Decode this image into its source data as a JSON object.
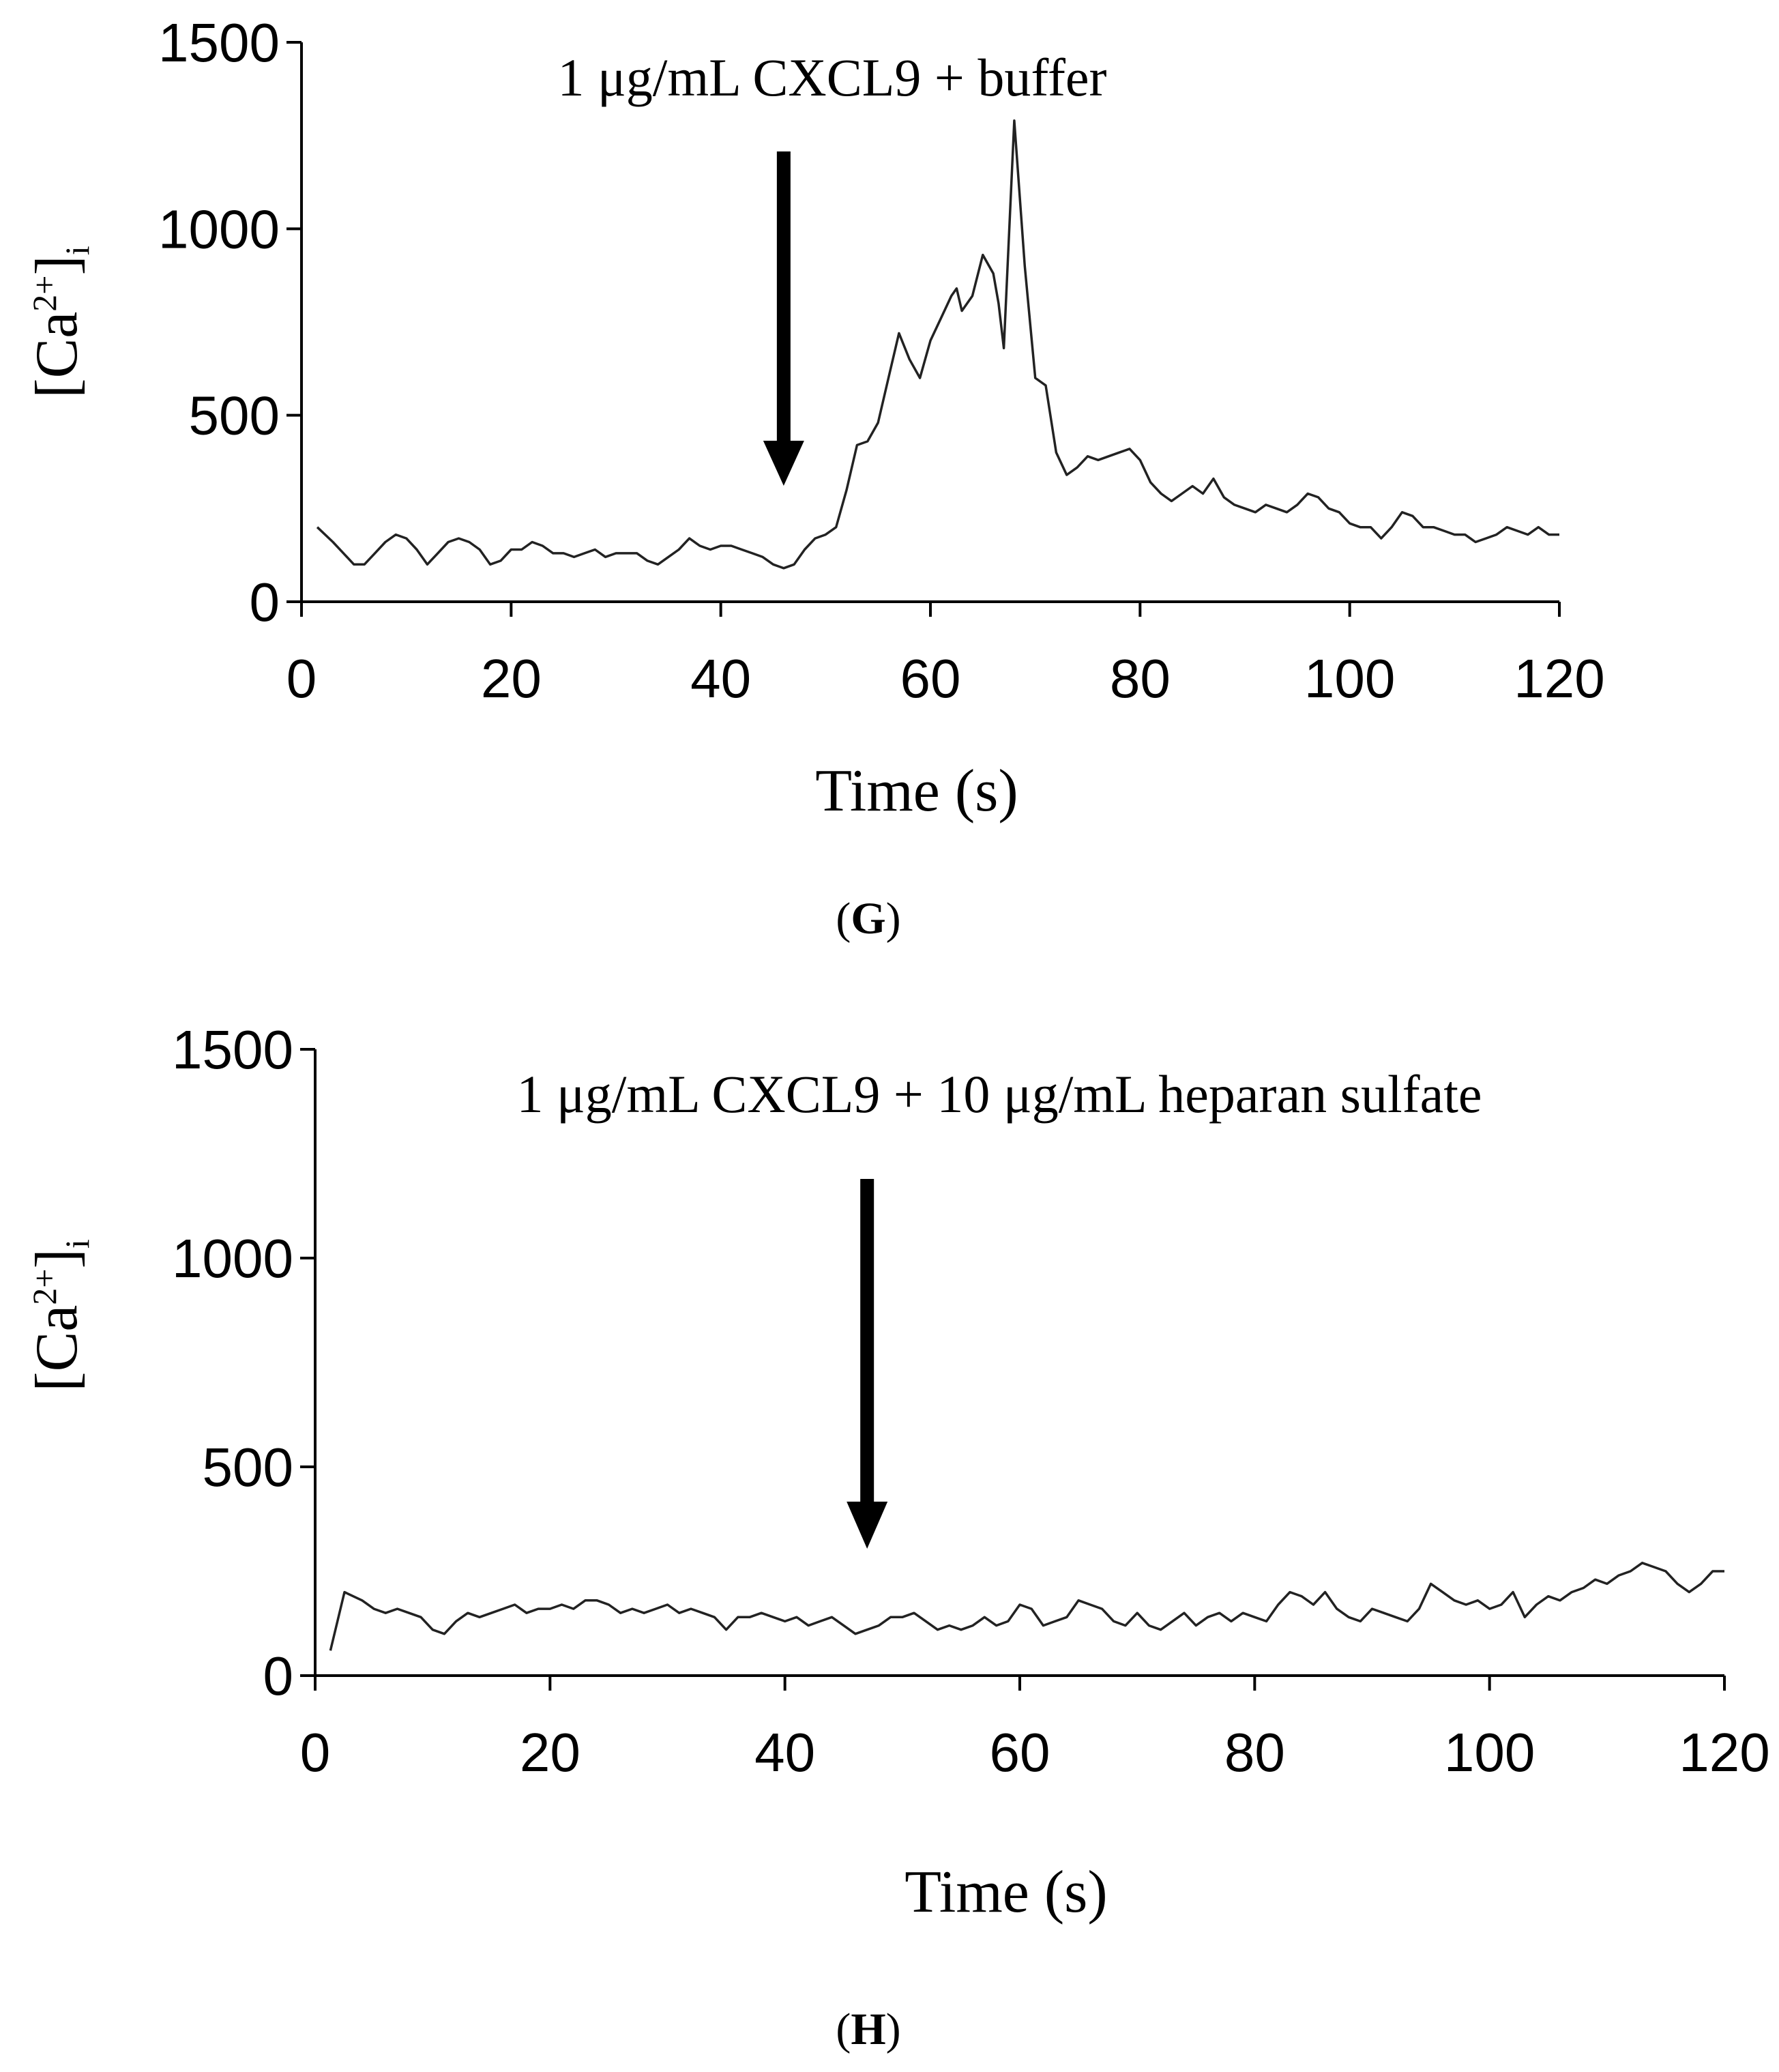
{
  "chart_data": [
    {
      "type": "line",
      "panel": "G",
      "annotation": "1 μg/mL CXCL9 + buffer",
      "arrow_time": 46,
      "xlabel": "Time (s)",
      "ylabel": {
        "base": "[Ca",
        "sup": "2+",
        "close": "]",
        "sub": "i"
      },
      "xlim": [
        0,
        120
      ],
      "ylim": [
        0,
        1500
      ],
      "xticks": [
        "0",
        "20",
        "40",
        "60",
        "80",
        "100",
        "120"
      ],
      "yticks": [
        "0",
        "500",
        "1000",
        "1500"
      ],
      "series": [
        {
          "name": "CXCL9 + buffer",
          "x": [
            1.5,
            3,
            4,
            5,
            6,
            7,
            8,
            9,
            10,
            11,
            12,
            13,
            14,
            15,
            16,
            17,
            18,
            19,
            20,
            21,
            22,
            23,
            24,
            25,
            26,
            27,
            28,
            29,
            30,
            31,
            32,
            33,
            34,
            35,
            36,
            37,
            38,
            39,
            40,
            41,
            42,
            43,
            44,
            45,
            46,
            47,
            48,
            49,
            50,
            51,
            52,
            53,
            54,
            55,
            56,
            57,
            58,
            59,
            60,
            61,
            62,
            62.5,
            63,
            64,
            65,
            66,
            66.5,
            67,
            68,
            69,
            70,
            71,
            72,
            73,
            74,
            75,
            76,
            77,
            78,
            79,
            80,
            81,
            82,
            83,
            84,
            85,
            86,
            87,
            88,
            89,
            90,
            91,
            92,
            93,
            94,
            95,
            96,
            97,
            98,
            99,
            100,
            101,
            102,
            103,
            104,
            105,
            106,
            107,
            108,
            109,
            110,
            111,
            112,
            113,
            114,
            115,
            116,
            117,
            118,
            119,
            120
          ],
          "values": [
            200,
            160,
            130,
            100,
            100,
            130,
            160,
            180,
            170,
            140,
            100,
            130,
            160,
            170,
            160,
            140,
            100,
            110,
            140,
            140,
            160,
            150,
            130,
            130,
            120,
            130,
            140,
            120,
            130,
            130,
            130,
            110,
            100,
            120,
            140,
            170,
            150,
            140,
            150,
            150,
            140,
            130,
            120,
            100,
            90,
            100,
            140,
            170,
            180,
            200,
            300,
            420,
            430,
            480,
            600,
            720,
            650,
            600,
            700,
            760,
            820,
            840,
            780,
            820,
            930,
            880,
            800,
            680,
            1290,
            900,
            600,
            580,
            400,
            340,
            360,
            390,
            380,
            390,
            400,
            410,
            380,
            320,
            290,
            270,
            290,
            310,
            290,
            330,
            280,
            260,
            250,
            240,
            260,
            250,
            240,
            260,
            290,
            280,
            250,
            240,
            210,
            200,
            200,
            170,
            200,
            240,
            230,
            200,
            200,
            190,
            180,
            180,
            160,
            170,
            180,
            200,
            190,
            180,
            200,
            180,
            180
          ]
        }
      ]
    },
    {
      "type": "line",
      "panel": "H",
      "annotation": "1 μg/mL CXCL9 + 10 μg/mL heparan sulfate",
      "arrow_time": 47,
      "xlabel": "Time (s)",
      "ylabel": {
        "base": "[Ca",
        "sup": "2+",
        "close": "]",
        "sub": "i"
      },
      "xlim": [
        0,
        120
      ],
      "ylim": [
        0,
        1500
      ],
      "xticks": [
        "0",
        "20",
        "40",
        "60",
        "80",
        "100",
        "120"
      ],
      "yticks": [
        "0",
        "500",
        "1000",
        "1500"
      ],
      "series": [
        {
          "name": "CXCL9 + heparan sulfate",
          "x": [
            1.3,
            2.5,
            4,
            5,
            6,
            7,
            8,
            9,
            10,
            11,
            12,
            13,
            14,
            15,
            16,
            17,
            18,
            19,
            20,
            21,
            22,
            23,
            24,
            25,
            26,
            27,
            28,
            29,
            30,
            31,
            32,
            33,
            34,
            35,
            36,
            37,
            38,
            39,
            40,
            41,
            42,
            43,
            44,
            45,
            46,
            47,
            48,
            49,
            50,
            51,
            52,
            53,
            54,
            55,
            56,
            57,
            58,
            59,
            60,
            61,
            62,
            63,
            64,
            65,
            66,
            67,
            68,
            69,
            70,
            71,
            72,
            73,
            74,
            75,
            76,
            77,
            78,
            79,
            80,
            81,
            82,
            83,
            84,
            85,
            86,
            87,
            88,
            89,
            90,
            91,
            92,
            93,
            94,
            95,
            96,
            97,
            98,
            99,
            100,
            101,
            102,
            103,
            104,
            105,
            106,
            107,
            108,
            109,
            110,
            111,
            112,
            113,
            114,
            115,
            116,
            117,
            118,
            119,
            120
          ],
          "values": [
            60,
            200,
            180,
            160,
            150,
            160,
            150,
            140,
            110,
            100,
            130,
            150,
            140,
            150,
            160,
            170,
            150,
            160,
            160,
            170,
            160,
            180,
            180,
            170,
            150,
            160,
            150,
            160,
            170,
            150,
            160,
            150,
            140,
            110,
            140,
            140,
            150,
            140,
            130,
            140,
            120,
            130,
            140,
            120,
            100,
            110,
            120,
            140,
            140,
            150,
            130,
            110,
            120,
            110,
            120,
            140,
            120,
            130,
            170,
            160,
            120,
            130,
            140,
            180,
            170,
            160,
            130,
            120,
            150,
            120,
            110,
            130,
            150,
            120,
            140,
            150,
            130,
            150,
            140,
            130,
            170,
            200,
            190,
            170,
            200,
            160,
            140,
            130,
            160,
            150,
            140,
            130,
            160,
            220,
            200,
            180,
            170,
            180,
            160,
            170,
            200,
            140,
            170,
            190,
            180,
            200,
            210,
            230,
            220,
            240,
            250,
            270,
            260,
            250,
            220,
            200,
            220,
            250,
            250
          ]
        }
      ]
    }
  ]
}
